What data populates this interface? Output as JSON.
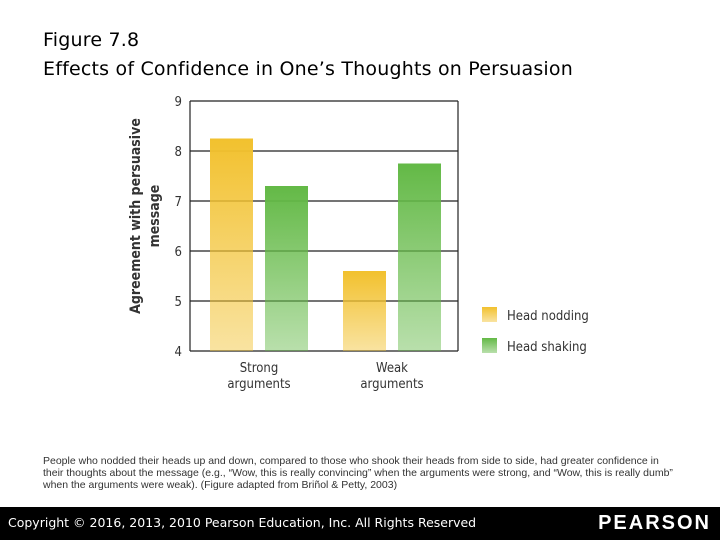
{
  "figure": {
    "number": "Figure 7.8",
    "title": "Effects of Confidence in One’s Thoughts on Persuasion"
  },
  "chart_data": {
    "type": "bar",
    "categories": [
      [
        "Strong",
        "arguments"
      ],
      [
        "Weak",
        "arguments"
      ]
    ],
    "series": [
      {
        "name": "Head nodding",
        "values": [
          8.25,
          5.6
        ],
        "color": "#F2C12E"
      },
      {
        "name": "Head shaking",
        "values": [
          7.3,
          7.75
        ],
        "color": "#63B946"
      }
    ],
    "ylabel": [
      "Agreement with persuasive",
      "message"
    ],
    "ylim": [
      4,
      9
    ],
    "yticks": [
      4,
      5,
      6,
      7,
      8,
      9
    ],
    "grid": true,
    "legend": "right"
  },
  "caption": "People who nodded their heads up and down, compared to those who shook their heads from side to side, had greater confidence in their thoughts about the message (e.g., “Wow, this is really convincing” when the arguments were strong, and “Wow, this is really dumb” when the arguments were weak). (Figure adapted from Briñol & Petty, 2003)",
  "footer": {
    "copyright": "Copyright © 2016, 2013, 2010 Pearson Education, Inc. All Rights Reserved",
    "logo": "PEARSON"
  }
}
